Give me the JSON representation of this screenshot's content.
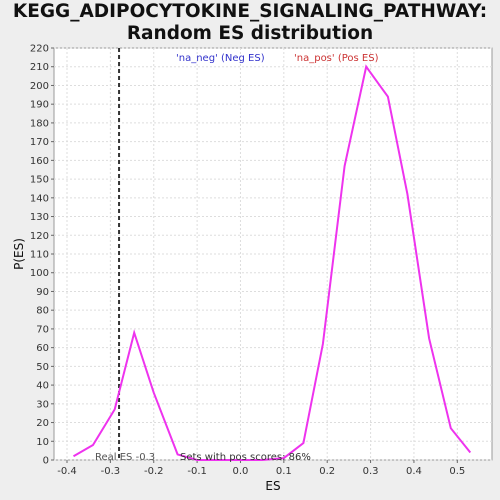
{
  "chart_data": {
    "type": "line",
    "title_line1": "KEGG_ADIPOCYTOKINE_SIGNALING_PATHWAY:",
    "title_line2": "Random ES distribution",
    "xlabel": "ES",
    "ylabel": "P(ES)",
    "xlim": [
      -0.43,
      0.58
    ],
    "ylim": [
      0,
      220
    ],
    "x_ticks": [
      -0.4,
      -0.3,
      -0.2,
      -0.1,
      0.0,
      0.1,
      0.2,
      0.3,
      0.4,
      0.5
    ],
    "x_tick_labels": [
      "-0.4",
      "-0.3",
      "-0.2",
      "-0.1",
      "0.0",
      "0.1",
      "0.2",
      "0.3",
      "0.4",
      "0.5"
    ],
    "y_ticks": [
      0,
      10,
      20,
      30,
      40,
      50,
      60,
      70,
      80,
      90,
      100,
      110,
      120,
      130,
      140,
      150,
      160,
      170,
      180,
      190,
      200,
      210,
      220
    ],
    "grid": true,
    "series": [
      {
        "color": "#ee33ee",
        "x": [
          -0.385,
          -0.34,
          -0.29,
          -0.245,
          -0.2,
          -0.145,
          -0.1,
          -0.05,
          0.0,
          0.05,
          0.1,
          0.145,
          0.19,
          0.24,
          0.29,
          0.34,
          0.385,
          0.435,
          0.485,
          0.53
        ],
        "y": [
          2,
          8,
          27,
          68,
          36,
          3,
          0,
          0,
          0,
          0,
          1,
          9,
          62,
          157,
          210,
          194,
          142,
          65,
          17,
          4
        ]
      }
    ],
    "real_es_line": {
      "x": -0.28,
      "color": "#333333"
    },
    "annotations": {
      "neg_label": "'na_neg' (Neg ES)",
      "neg_color": "#3333cc",
      "pos_label": "'na_pos' (Pos ES)",
      "pos_color": "#cc3333",
      "real_es_text": "Real ES -0.3",
      "pos_scores_text": "Sets with pos scores: 86%"
    }
  }
}
